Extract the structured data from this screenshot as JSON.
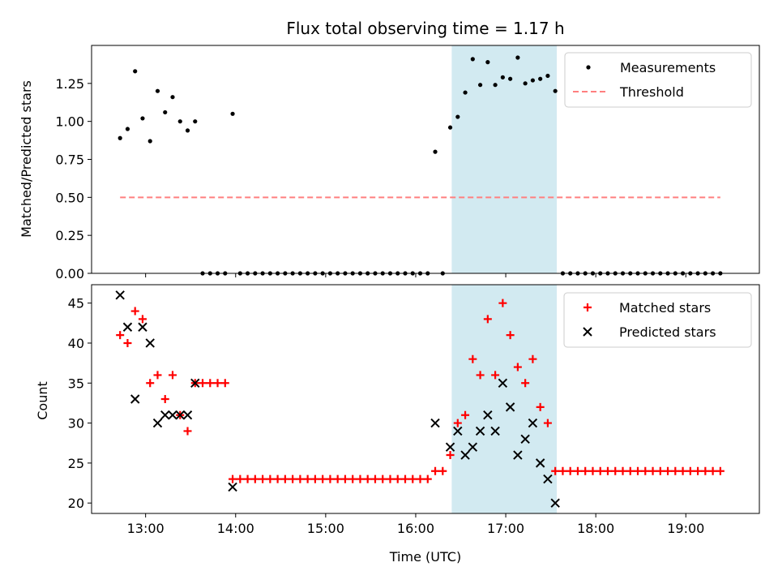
{
  "title": "Flux total observing time = 1.17 h",
  "colors": {
    "measure": "#000000",
    "threshold": "#ff7f7f",
    "matched": "#ff0000",
    "predicted": "#000000",
    "shade": "#add8e6"
  },
  "chart_data": [
    {
      "type": "scatter",
      "panel": "top",
      "ylabel": "Matched/Predicted stars",
      "xlabel": "",
      "xlim": [
        "12:24",
        "19:49"
      ],
      "ylim": [
        0,
        1.5
      ],
      "yticks": [
        0.0,
        0.25,
        0.5,
        0.75,
        1.0,
        1.25
      ],
      "ytick_labels": [
        "0.00",
        "0.25",
        "0.50",
        "0.75",
        "1.00",
        "1.25"
      ],
      "xticks": [
        "13:00",
        "14:00",
        "15:00",
        "16:00",
        "17:00",
        "18:00",
        "19:00"
      ],
      "shaded_span": [
        "16:24",
        "17:34"
      ],
      "legend": {
        "position": "upper right",
        "entries": [
          "Measurements",
          "Threshold"
        ]
      },
      "series": [
        {
          "name": "Measurements",
          "kind": "points",
          "x": [
            "12:43",
            "12:48",
            "12:53",
            "12:58",
            "13:03",
            "13:08",
            "13:13",
            "13:18",
            "13:23",
            "13:28",
            "13:33",
            "13:38",
            "13:43",
            "13:48",
            "13:53",
            "13:58",
            "14:03",
            "14:08",
            "14:13",
            "14:18",
            "14:23",
            "14:28",
            "14:33",
            "14:38",
            "14:43",
            "14:48",
            "14:53",
            "14:58",
            "15:03",
            "15:08",
            "15:13",
            "15:18",
            "15:23",
            "15:28",
            "15:33",
            "15:38",
            "15:43",
            "15:48",
            "15:53",
            "15:58",
            "16:03",
            "16:08",
            "16:13",
            "16:18",
            "16:23",
            "16:28",
            "16:33",
            "16:38",
            "16:43",
            "16:48",
            "16:53",
            "16:58",
            "17:03",
            "17:08",
            "17:13",
            "17:18",
            "17:23",
            "17:28",
            "17:33",
            "17:38",
            "17:43",
            "17:48",
            "17:53",
            "17:58",
            "18:03",
            "18:08",
            "18:13",
            "18:18",
            "18:23",
            "18:28",
            "18:33",
            "18:38",
            "18:43",
            "18:48",
            "18:53",
            "18:58",
            "19:03",
            "19:08",
            "19:13",
            "19:18",
            "19:23"
          ],
          "y": [
            0.89,
            0.95,
            1.33,
            1.02,
            0.87,
            1.2,
            1.06,
            1.16,
            1.0,
            0.94,
            1.0,
            0,
            0,
            0,
            0,
            1.05,
            0,
            0,
            0,
            0,
            0,
            0,
            0,
            0,
            0,
            0,
            0,
            0,
            0,
            0,
            0,
            0,
            0,
            0,
            0,
            0,
            0,
            0,
            0,
            0,
            0,
            0,
            0.8,
            0,
            0.96,
            1.03,
            1.19,
            1.41,
            1.24,
            1.39,
            1.24,
            1.29,
            1.28,
            1.42,
            1.25,
            1.27,
            1.28,
            1.3,
            1.2,
            0,
            0,
            0,
            0,
            0,
            0,
            0,
            0,
            0,
            0,
            0,
            0,
            0,
            0,
            0,
            0,
            0,
            0,
            0,
            0,
            0,
            0
          ]
        },
        {
          "name": "Threshold",
          "kind": "dashed-line",
          "x": [
            "12:43",
            "19:23"
          ],
          "y": [
            0.5,
            0.5
          ]
        }
      ]
    },
    {
      "type": "scatter",
      "panel": "bottom",
      "ylabel": "Count",
      "xlabel": "Time (UTC)",
      "xlim": [
        "12:24",
        "19:49"
      ],
      "ylim": [
        18.7,
        47.3
      ],
      "yticks": [
        20,
        25,
        30,
        35,
        40,
        45
      ],
      "ytick_labels": [
        "20",
        "25",
        "30",
        "35",
        "40",
        "45"
      ],
      "xticks": [
        "13:00",
        "14:00",
        "15:00",
        "16:00",
        "17:00",
        "18:00",
        "19:00"
      ],
      "shaded_span": [
        "16:24",
        "17:34"
      ],
      "legend": {
        "position": "upper right",
        "entries": [
          "Matched stars",
          "Predicted stars"
        ]
      },
      "series": [
        {
          "name": "Matched stars",
          "kind": "plus",
          "x": [
            "12:43",
            "12:48",
            "12:53",
            "12:58",
            "13:03",
            "13:08",
            "13:13",
            "13:18",
            "13:23",
            "13:28",
            "13:33",
            "13:38",
            "13:43",
            "13:48",
            "13:53",
            "13:58",
            "14:03",
            "14:08",
            "14:13",
            "14:18",
            "14:23",
            "14:28",
            "14:33",
            "14:38",
            "14:43",
            "14:48",
            "14:53",
            "14:58",
            "15:03",
            "15:08",
            "15:13",
            "15:18",
            "15:23",
            "15:28",
            "15:33",
            "15:38",
            "15:43",
            "15:48",
            "15:53",
            "15:58",
            "16:03",
            "16:08",
            "16:13",
            "16:18",
            "16:23",
            "16:28",
            "16:33",
            "16:38",
            "16:43",
            "16:48",
            "16:53",
            "16:58",
            "17:03",
            "17:08",
            "17:13",
            "17:18",
            "17:23",
            "17:28",
            "17:33",
            "17:38",
            "17:43",
            "17:48",
            "17:53",
            "17:58",
            "18:03",
            "18:08",
            "18:13",
            "18:18",
            "18:23",
            "18:28",
            "18:33",
            "18:38",
            "18:43",
            "18:48",
            "18:53",
            "18:58",
            "19:03",
            "19:08",
            "19:13",
            "19:18",
            "19:23"
          ],
          "y": [
            41,
            40,
            44,
            43,
            35,
            36,
            33,
            36,
            31,
            29,
            35,
            35,
            35,
            35,
            35,
            23,
            23,
            23,
            23,
            23,
            23,
            23,
            23,
            23,
            23,
            23,
            23,
            23,
            23,
            23,
            23,
            23,
            23,
            23,
            23,
            23,
            23,
            23,
            23,
            23,
            23,
            23,
            24,
            24,
            26,
            30,
            31,
            38,
            36,
            43,
            36,
            45,
            41,
            37,
            35,
            38,
            32,
            30,
            24,
            24,
            24,
            24,
            24,
            24,
            24,
            24,
            24,
            24,
            24,
            24,
            24,
            24,
            24,
            24,
            24,
            24,
            24,
            24,
            24,
            24,
            24
          ]
        },
        {
          "name": "Predicted stars",
          "kind": "x",
          "x": [
            "12:43",
            "12:48",
            "12:53",
            "12:58",
            "13:03",
            "13:08",
            "13:13",
            "13:18",
            "13:23",
            "13:28",
            "13:33",
            "13:58",
            "16:13",
            "16:23",
            "16:28",
            "16:33",
            "16:38",
            "16:43",
            "16:48",
            "16:53",
            "16:58",
            "17:03",
            "17:08",
            "17:13",
            "17:18",
            "17:23",
            "17:28",
            "17:33"
          ],
          "y": [
            46,
            42,
            33,
            42,
            40,
            30,
            31,
            31,
            31,
            31,
            35,
            22,
            30,
            27,
            29,
            26,
            27,
            29,
            31,
            29,
            35,
            32,
            26,
            28,
            30,
            25,
            23,
            20
          ]
        }
      ]
    }
  ]
}
